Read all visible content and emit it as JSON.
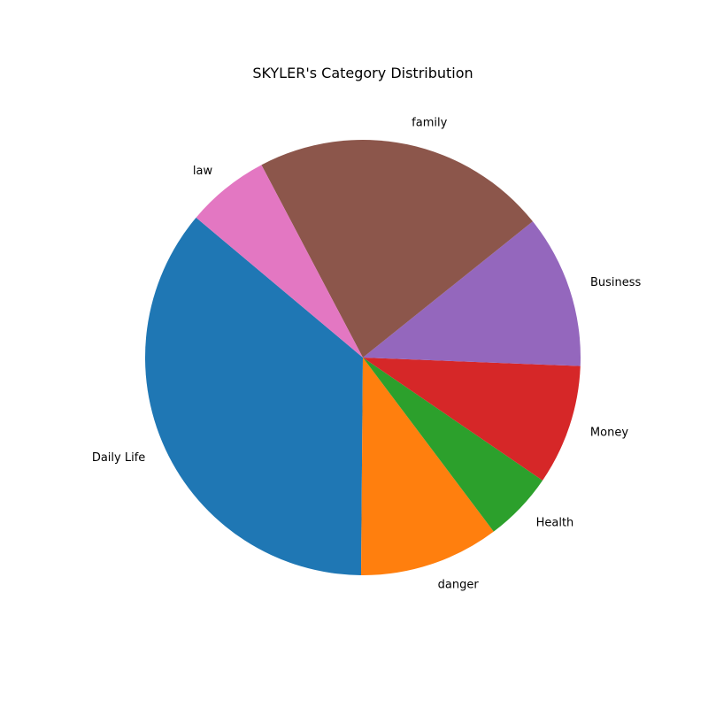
{
  "chart_data": {
    "type": "pie",
    "title": "SKYLER's Category Distribution",
    "start_angle_deg": 140,
    "direction": "counterclockwise",
    "slices": [
      {
        "label": "Daily Life",
        "value": 36.7,
        "color": "#1f77b4"
      },
      {
        "label": "danger",
        "value": 10.6,
        "color": "#ff7f0e"
      },
      {
        "label": "Health",
        "value": 5.3,
        "color": "#2ca02c"
      },
      {
        "label": "Money",
        "value": 9.1,
        "color": "#d62728"
      },
      {
        "label": "Business",
        "value": 11.6,
        "color": "#9467bd"
      },
      {
        "label": "family",
        "value": 22.4,
        "color": "#8c564b"
      },
      {
        "label": "law",
        "value": 6.3,
        "color": "#e377c2"
      }
    ]
  }
}
